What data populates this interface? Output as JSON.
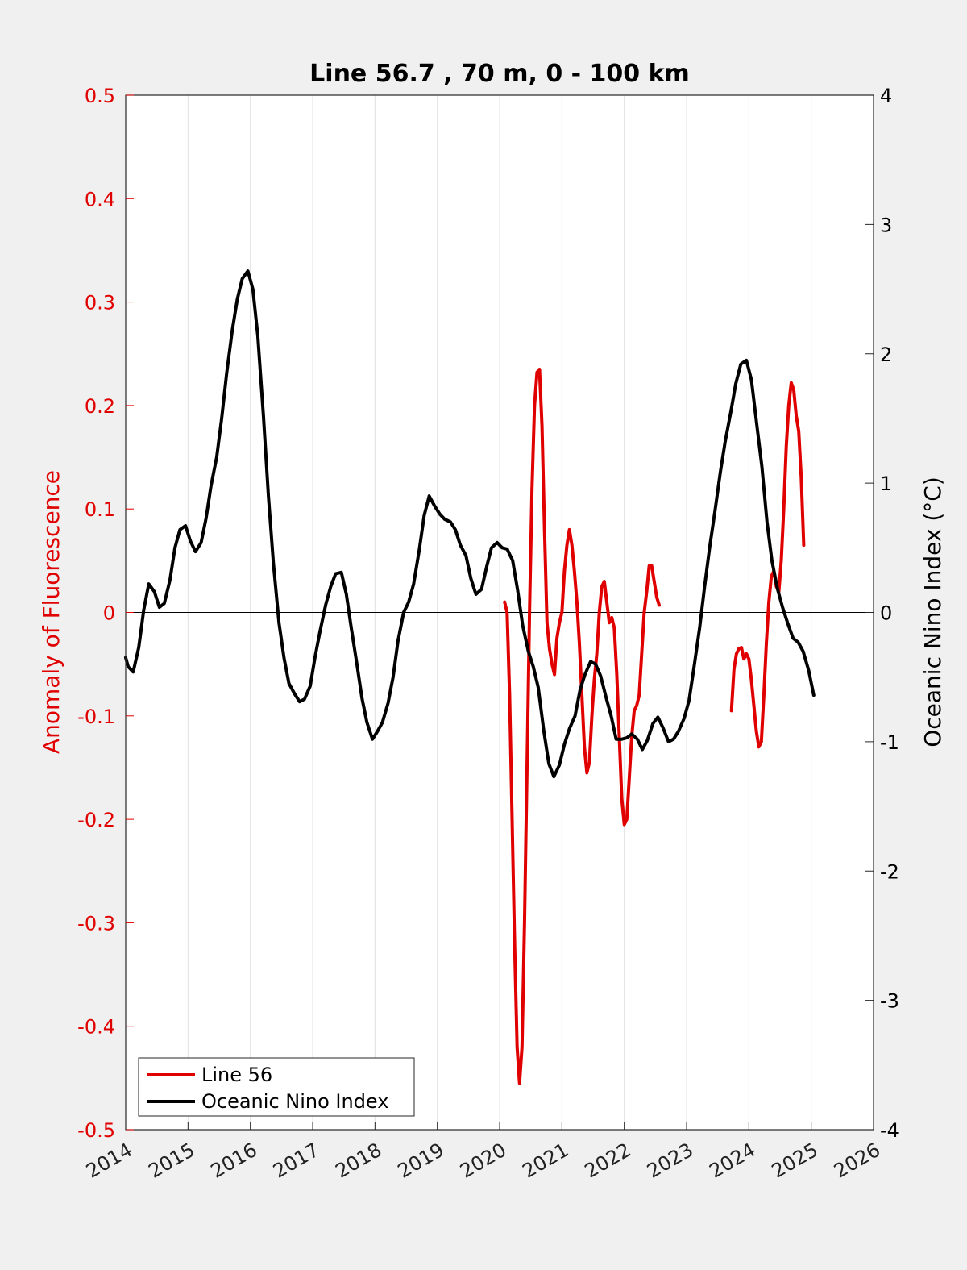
{
  "colors": {
    "series_line56": "#e00000",
    "series_oni": "#000000",
    "background": "#f0f0f0",
    "plot_bg": "#ffffff",
    "grid": "#e0e0e0"
  },
  "chart_data": {
    "type": "line",
    "title": "Line 56.7 , 70 m, 0 - 100 km",
    "xlabel": "",
    "ylabel_left": "Anomaly of Fluorescence",
    "ylabel_right": "Oceanic Nino Index (°C)",
    "xlim": [
      2014,
      2026
    ],
    "ylim_left": [
      -0.5,
      0.5
    ],
    "ylim_right": [
      -4,
      4
    ],
    "x_ticks": [
      "2014",
      "2015",
      "2016",
      "2017",
      "2018",
      "2019",
      "2020",
      "2021",
      "2022",
      "2023",
      "2024",
      "2025",
      "2026"
    ],
    "y_left_ticks": [
      "-0.5",
      "-0.4",
      "-0.3",
      "-0.2",
      "-0.1",
      "0",
      "0.1",
      "0.2",
      "0.3",
      "0.4",
      "0.5"
    ],
    "y_right_ticks": [
      "-4",
      "-3",
      "-2",
      "-1",
      "0",
      "1",
      "2",
      "3",
      "4"
    ],
    "x_grid": true,
    "zero_line": true,
    "legend_position": "bottom-left",
    "series": [
      {
        "name": "Line 56",
        "axis": "left",
        "segments": [
          [
            [
              2020.08,
              0.01
            ],
            [
              2020.12,
              0.0
            ],
            [
              2020.16,
              -0.08
            ],
            [
              2020.2,
              -0.2
            ],
            [
              2020.24,
              -0.32
            ],
            [
              2020.28,
              -0.42
            ],
            [
              2020.32,
              -0.455
            ],
            [
              2020.36,
              -0.42
            ],
            [
              2020.4,
              -0.3
            ],
            [
              2020.44,
              -0.15
            ],
            [
              2020.48,
              0.0
            ],
            [
              2020.52,
              0.12
            ],
            [
              2020.56,
              0.2
            ],
            [
              2020.6,
              0.232
            ],
            [
              2020.64,
              0.235
            ],
            [
              2020.68,
              0.18
            ],
            [
              2020.72,
              0.08
            ],
            [
              2020.76,
              -0.01
            ],
            [
              2020.8,
              -0.035
            ],
            [
              2020.84,
              -0.05
            ],
            [
              2020.88,
              -0.06
            ],
            [
              2020.92,
              -0.025
            ],
            [
              2020.96,
              -0.01
            ],
            [
              2021.0,
              0.0
            ],
            [
              2021.04,
              0.04
            ],
            [
              2021.08,
              0.065
            ],
            [
              2021.12,
              0.08
            ],
            [
              2021.16,
              0.065
            ],
            [
              2021.2,
              0.04
            ],
            [
              2021.24,
              0.01
            ],
            [
              2021.28,
              -0.03
            ],
            [
              2021.32,
              -0.08
            ],
            [
              2021.36,
              -0.13
            ],
            [
              2021.4,
              -0.155
            ],
            [
              2021.44,
              -0.145
            ],
            [
              2021.48,
              -0.1
            ],
            [
              2021.52,
              -0.065
            ],
            [
              2021.56,
              -0.04
            ],
            [
              2021.6,
              0.0
            ],
            [
              2021.64,
              0.025
            ],
            [
              2021.68,
              0.03
            ],
            [
              2021.72,
              0.01
            ],
            [
              2021.76,
              -0.01
            ],
            [
              2021.8,
              -0.005
            ],
            [
              2021.84,
              -0.015
            ],
            [
              2021.88,
              -0.06
            ],
            [
              2021.92,
              -0.12
            ],
            [
              2021.96,
              -0.18
            ],
            [
              2022.0,
              -0.205
            ],
            [
              2022.04,
              -0.2
            ],
            [
              2022.08,
              -0.16
            ],
            [
              2022.12,
              -0.12
            ],
            [
              2022.16,
              -0.095
            ],
            [
              2022.2,
              -0.09
            ],
            [
              2022.24,
              -0.08
            ],
            [
              2022.28,
              -0.04
            ],
            [
              2022.32,
              0.0
            ],
            [
              2022.36,
              0.02
            ],
            [
              2022.4,
              0.045
            ],
            [
              2022.44,
              0.045
            ],
            [
              2022.48,
              0.03
            ],
            [
              2022.52,
              0.015
            ],
            [
              2022.56,
              0.007
            ]
          ],
          [
            [
              2023.72,
              -0.095
            ],
            [
              2023.76,
              -0.055
            ],
            [
              2023.8,
              -0.04
            ],
            [
              2023.84,
              -0.035
            ],
            [
              2023.88,
              -0.034
            ],
            [
              2023.92,
              -0.045
            ],
            [
              2023.96,
              -0.04
            ],
            [
              2024.0,
              -0.045
            ],
            [
              2024.04,
              -0.065
            ],
            [
              2024.08,
              -0.09
            ],
            [
              2024.12,
              -0.115
            ],
            [
              2024.16,
              -0.13
            ],
            [
              2024.2,
              -0.125
            ],
            [
              2024.24,
              -0.08
            ],
            [
              2024.28,
              -0.03
            ],
            [
              2024.32,
              0.01
            ],
            [
              2024.36,
              0.035
            ],
            [
              2024.4,
              0.04
            ],
            [
              2024.44,
              0.025
            ],
            [
              2024.48,
              0.02
            ],
            [
              2024.52,
              0.05
            ],
            [
              2024.56,
              0.1
            ],
            [
              2024.6,
              0.16
            ],
            [
              2024.64,
              0.2
            ],
            [
              2024.68,
              0.222
            ],
            [
              2024.72,
              0.215
            ],
            [
              2024.76,
              0.19
            ],
            [
              2024.8,
              0.175
            ],
            [
              2024.84,
              0.13
            ],
            [
              2024.88,
              0.065
            ]
          ]
        ]
      },
      {
        "name": "Oceanic Nino Index",
        "axis": "right",
        "segments": [
          [
            [
              2014.0,
              -0.35
            ],
            [
              2014.04,
              -0.42
            ],
            [
              2014.12,
              -0.46
            ],
            [
              2014.21,
              -0.27
            ],
            [
              2014.29,
              0.02
            ],
            [
              2014.37,
              0.22
            ],
            [
              2014.46,
              0.16
            ],
            [
              2014.54,
              0.04
            ],
            [
              2014.62,
              0.07
            ],
            [
              2014.71,
              0.25
            ],
            [
              2014.79,
              0.5
            ],
            [
              2014.87,
              0.64
            ],
            [
              2014.96,
              0.67
            ],
            [
              2015.04,
              0.55
            ],
            [
              2015.12,
              0.47
            ],
            [
              2015.21,
              0.54
            ],
            [
              2015.29,
              0.73
            ],
            [
              2015.37,
              0.98
            ],
            [
              2015.46,
              1.2
            ],
            [
              2015.54,
              1.5
            ],
            [
              2015.62,
              1.85
            ],
            [
              2015.71,
              2.18
            ],
            [
              2015.79,
              2.42
            ],
            [
              2015.87,
              2.58
            ],
            [
              2015.96,
              2.64
            ],
            [
              2016.04,
              2.5
            ],
            [
              2016.12,
              2.14
            ],
            [
              2016.21,
              1.52
            ],
            [
              2016.29,
              0.9
            ],
            [
              2016.37,
              0.38
            ],
            [
              2016.46,
              -0.08
            ],
            [
              2016.54,
              -0.35
            ],
            [
              2016.62,
              -0.55
            ],
            [
              2016.71,
              -0.63
            ],
            [
              2016.79,
              -0.69
            ],
            [
              2016.87,
              -0.67
            ],
            [
              2016.96,
              -0.57
            ],
            [
              2017.04,
              -0.34
            ],
            [
              2017.12,
              -0.14
            ],
            [
              2017.21,
              0.06
            ],
            [
              2017.29,
              0.2
            ],
            [
              2017.37,
              0.3
            ],
            [
              2017.46,
              0.31
            ],
            [
              2017.54,
              0.14
            ],
            [
              2017.62,
              -0.12
            ],
            [
              2017.71,
              -0.4
            ],
            [
              2017.79,
              -0.66
            ],
            [
              2017.87,
              -0.85
            ],
            [
              2017.96,
              -0.98
            ],
            [
              2018.04,
              -0.92
            ],
            [
              2018.12,
              -0.85
            ],
            [
              2018.21,
              -0.7
            ],
            [
              2018.29,
              -0.5
            ],
            [
              2018.37,
              -0.22
            ],
            [
              2018.46,
              0.0
            ],
            [
              2018.54,
              0.08
            ],
            [
              2018.62,
              0.22
            ],
            [
              2018.71,
              0.48
            ],
            [
              2018.79,
              0.75
            ],
            [
              2018.87,
              0.9
            ],
            [
              2018.96,
              0.82
            ],
            [
              2019.04,
              0.76
            ],
            [
              2019.12,
              0.72
            ],
            [
              2019.21,
              0.7
            ],
            [
              2019.29,
              0.64
            ],
            [
              2019.37,
              0.52
            ],
            [
              2019.46,
              0.44
            ],
            [
              2019.54,
              0.26
            ],
            [
              2019.62,
              0.14
            ],
            [
              2019.71,
              0.18
            ],
            [
              2019.79,
              0.35
            ],
            [
              2019.87,
              0.5
            ],
            [
              2019.96,
              0.54
            ],
            [
              2020.04,
              0.5
            ],
            [
              2020.12,
              0.49
            ],
            [
              2020.21,
              0.4
            ],
            [
              2020.29,
              0.17
            ],
            [
              2020.37,
              -0.1
            ],
            [
              2020.46,
              -0.3
            ],
            [
              2020.54,
              -0.42
            ],
            [
              2020.62,
              -0.58
            ],
            [
              2020.71,
              -0.92
            ],
            [
              2020.79,
              -1.17
            ],
            [
              2020.87,
              -1.27
            ],
            [
              2020.96,
              -1.18
            ],
            [
              2021.04,
              -1.02
            ],
            [
              2021.12,
              -0.9
            ],
            [
              2021.21,
              -0.8
            ],
            [
              2021.29,
              -0.6
            ],
            [
              2021.37,
              -0.48
            ],
            [
              2021.46,
              -0.38
            ],
            [
              2021.54,
              -0.4
            ],
            [
              2021.62,
              -0.49
            ],
            [
              2021.71,
              -0.66
            ],
            [
              2021.79,
              -0.8
            ],
            [
              2021.87,
              -0.98
            ],
            [
              2021.96,
              -0.98
            ],
            [
              2022.04,
              -0.97
            ],
            [
              2022.12,
              -0.94
            ],
            [
              2022.21,
              -0.98
            ],
            [
              2022.29,
              -1.06
            ],
            [
              2022.37,
              -0.99
            ],
            [
              2022.46,
              -0.86
            ],
            [
              2022.54,
              -0.81
            ],
            [
              2022.62,
              -0.89
            ],
            [
              2022.71,
              -1.0
            ],
            [
              2022.79,
              -0.98
            ],
            [
              2022.87,
              -0.92
            ],
            [
              2022.96,
              -0.82
            ],
            [
              2023.04,
              -0.68
            ],
            [
              2023.12,
              -0.42
            ],
            [
              2023.21,
              -0.12
            ],
            [
              2023.29,
              0.2
            ],
            [
              2023.37,
              0.5
            ],
            [
              2023.46,
              0.8
            ],
            [
              2023.54,
              1.08
            ],
            [
              2023.62,
              1.32
            ],
            [
              2023.71,
              1.55
            ],
            [
              2023.79,
              1.77
            ],
            [
              2023.87,
              1.92
            ],
            [
              2023.96,
              1.95
            ],
            [
              2024.04,
              1.8
            ],
            [
              2024.12,
              1.48
            ],
            [
              2024.21,
              1.12
            ],
            [
              2024.29,
              0.7
            ],
            [
              2024.37,
              0.4
            ],
            [
              2024.46,
              0.18
            ],
            [
              2024.54,
              0.04
            ],
            [
              2024.62,
              -0.08
            ],
            [
              2024.71,
              -0.2
            ],
            [
              2024.79,
              -0.23
            ],
            [
              2024.87,
              -0.3
            ],
            [
              2024.96,
              -0.45
            ],
            [
              2025.04,
              -0.64
            ]
          ]
        ]
      }
    ]
  }
}
